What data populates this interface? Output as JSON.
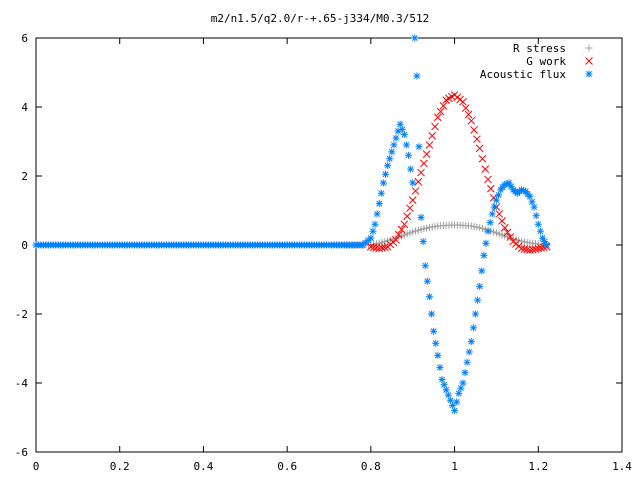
{
  "chart_data": {
    "type": "scatter",
    "title": "m2/n1.5/q2.0/r-+.65-j334/M0.3/512",
    "xlabel": "",
    "ylabel": "",
    "xlim": [
      0,
      1.4
    ],
    "ylim": [
      -6,
      6
    ],
    "x_ticks": [
      "0",
      "0.2",
      "0.4",
      "0.6",
      "0.8",
      "1",
      "1.2",
      "1.4"
    ],
    "y_ticks": [
      "6",
      "4",
      "2",
      "0",
      "-2",
      "-4",
      "-6"
    ],
    "grid": false,
    "legend_position": "top-right",
    "series": [
      {
        "name": "R stress",
        "marker": "+",
        "color": "#a0a0a0",
        "x": [
          0.0,
          0.1,
          0.2,
          0.3,
          0.4,
          0.5,
          0.6,
          0.7,
          0.8,
          0.82,
          0.84,
          0.86,
          0.88,
          0.9,
          0.92,
          0.94,
          0.96,
          0.98,
          1.0,
          1.02,
          1.04,
          1.06,
          1.08,
          1.1,
          1.12,
          1.14,
          1.16,
          1.18,
          1.2,
          1.22
        ],
        "y": [
          0,
          0,
          0,
          0,
          0,
          0,
          0,
          0,
          0,
          0.05,
          0.12,
          0.2,
          0.29,
          0.38,
          0.45,
          0.51,
          0.55,
          0.57,
          0.58,
          0.57,
          0.55,
          0.5,
          0.43,
          0.35,
          0.26,
          0.18,
          0.11,
          0.06,
          0.03,
          0.01
        ]
      },
      {
        "name": "G work",
        "marker": "x",
        "color": "#ff0000",
        "x": [
          0.8,
          0.82,
          0.84,
          0.86,
          0.88,
          0.9,
          0.92,
          0.94,
          0.96,
          0.98,
          1.0,
          1.02,
          1.04,
          1.06,
          1.08,
          1.1,
          1.12,
          1.14,
          1.16,
          1.18,
          1.2,
          1.22
        ],
        "y": [
          -0.05,
          -0.1,
          -0.05,
          0.15,
          0.6,
          1.3,
          2.1,
          2.9,
          3.7,
          4.2,
          4.35,
          4.15,
          3.6,
          2.8,
          1.9,
          1.1,
          0.5,
          0.1,
          -0.1,
          -0.15,
          -0.1,
          -0.05
        ]
      },
      {
        "name": "Acoustic flux",
        "marker": "*",
        "color": "#0080ff",
        "x": [
          0.0,
          0.1,
          0.2,
          0.3,
          0.4,
          0.5,
          0.6,
          0.7,
          0.78,
          0.8,
          0.81,
          0.82,
          0.83,
          0.84,
          0.85,
          0.86,
          0.87,
          0.88,
          0.89,
          0.9,
          0.905,
          0.91,
          0.92,
          0.93,
          0.94,
          0.95,
          0.96,
          0.97,
          0.98,
          0.99,
          1.0,
          1.01,
          1.02,
          1.03,
          1.04,
          1.05,
          1.06,
          1.07,
          1.08,
          1.09,
          1.1,
          1.11,
          1.12,
          1.13,
          1.14,
          1.15,
          1.16,
          1.17,
          1.18,
          1.19,
          1.2,
          1.21,
          1.22
        ],
        "y": [
          0,
          0,
          0,
          0,
          0,
          0,
          0,
          0,
          0,
          0.2,
          0.6,
          1.2,
          1.8,
          2.3,
          2.7,
          3.1,
          3.5,
          3.2,
          2.6,
          1.8,
          6.0,
          4.9,
          0.8,
          -0.6,
          -1.5,
          -2.5,
          -3.2,
          -3.9,
          -4.2,
          -4.5,
          -4.8,
          -4.3,
          -4.0,
          -3.4,
          -2.8,
          -2.0,
          -1.2,
          -0.3,
          0.4,
          0.9,
          1.3,
          1.6,
          1.75,
          1.8,
          1.6,
          1.5,
          1.6,
          1.55,
          1.4,
          1.1,
          0.6,
          0.2,
          0.0
        ]
      }
    ]
  }
}
